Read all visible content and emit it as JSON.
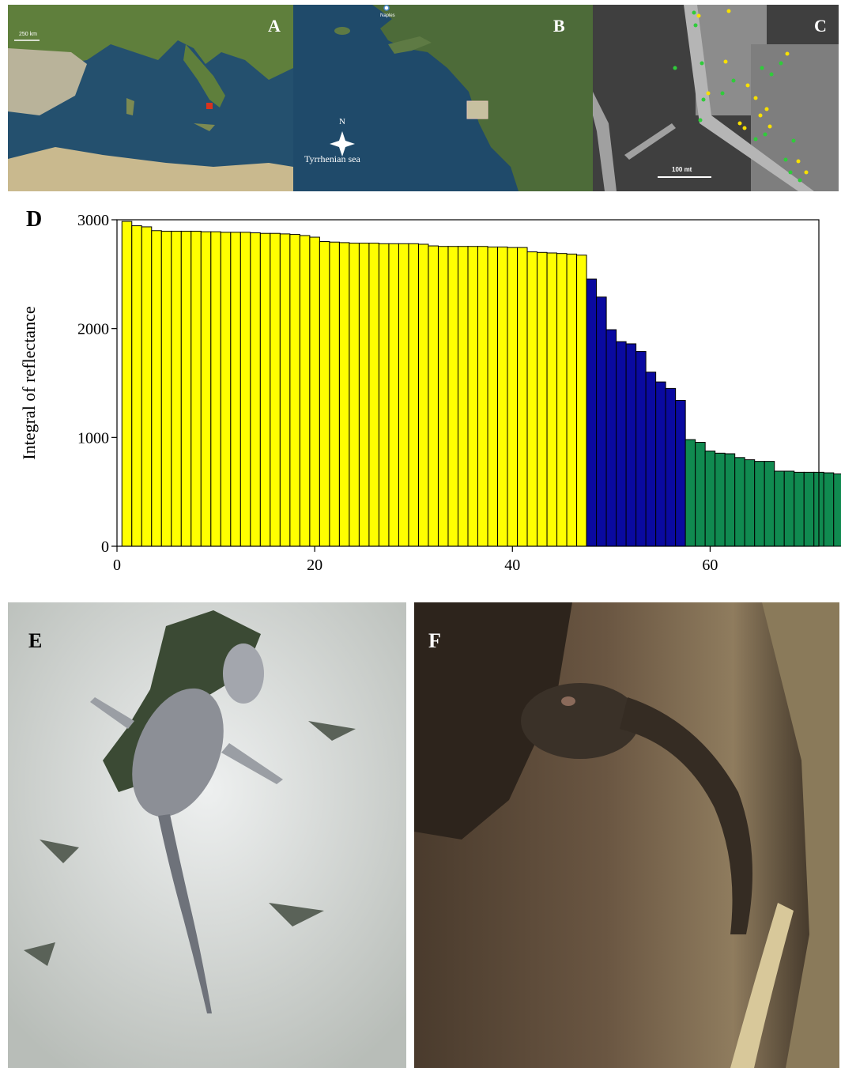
{
  "panels": {
    "a": {
      "letter": "A",
      "scale_label": "250 km"
    },
    "b": {
      "letter": "B",
      "city_label": "Naples",
      "compass_label": "N",
      "sea_label": "Tyrrhenian sea"
    },
    "c": {
      "letter": "C",
      "scale_label": "100 mt"
    },
    "d": {
      "letter": "D"
    },
    "e": {
      "letter": "E"
    },
    "f": {
      "letter": "F"
    }
  },
  "colors": {
    "yellow": "#ffff00",
    "blue": "#0a0aa0",
    "green": "#108a50"
  },
  "chart_data": {
    "type": "bar",
    "title": "",
    "xlabel": "",
    "ylabel": "Integral of reflectance",
    "xlim": [
      0,
      71
    ],
    "ylim": [
      0,
      3000
    ],
    "xticks": [
      0,
      20,
      40,
      60
    ],
    "yticks": [
      0,
      1000,
      2000,
      3000
    ],
    "grid": false,
    "legend": "none",
    "series": [
      {
        "color": "#ffff00",
        "x_start": 1,
        "values": [
          2985,
          2945,
          2935,
          2900,
          2895,
          2895,
          2895,
          2895,
          2890,
          2890,
          2885,
          2885,
          2885,
          2880,
          2875,
          2875,
          2870,
          2865,
          2855,
          2840,
          2800,
          2795,
          2790,
          2785,
          2785,
          2785,
          2780,
          2780,
          2780,
          2780,
          2775,
          2760,
          2755,
          2755,
          2755,
          2755,
          2755,
          2750,
          2750,
          2745,
          2745,
          2705,
          2700,
          2695,
          2690,
          2685,
          2675
        ]
      },
      {
        "color": "#0a0aa0",
        "x_start": 48,
        "values": [
          2455,
          2290,
          1990,
          1880,
          1860,
          1790,
          1600,
          1510,
          1450,
          1340
        ]
      },
      {
        "color": "#108a50",
        "x_start": 58,
        "values": [
          980,
          955,
          875,
          855,
          850,
          815,
          795,
          780,
          780,
          690,
          690,
          680,
          680,
          680,
          675,
          665
        ]
      }
    ]
  }
}
